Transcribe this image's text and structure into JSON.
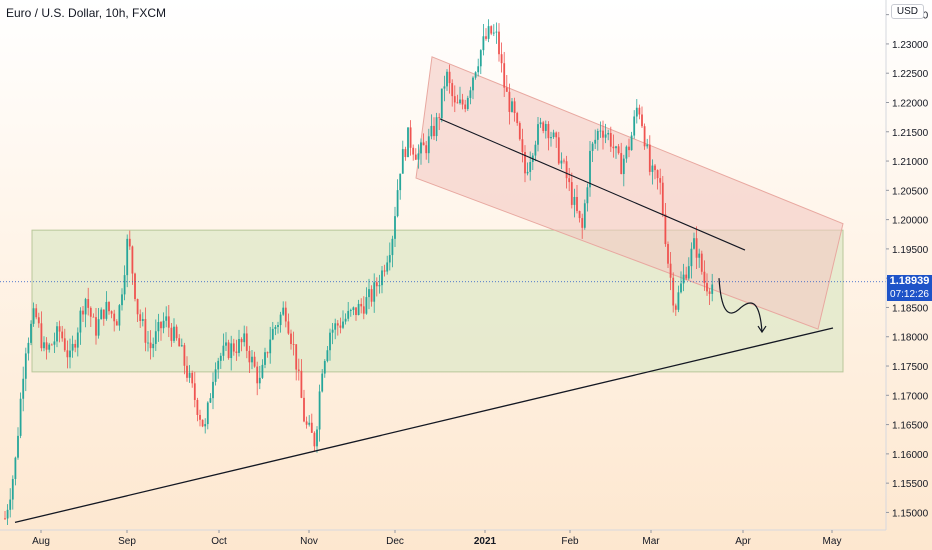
{
  "title": "Euro / U.S. Dollar, 10h, FXCM",
  "currency": "USD",
  "current_price": {
    "value": "1.18939",
    "timer": "07:12:26"
  },
  "colors": {
    "up": "#26a69a",
    "down": "#ef5350",
    "badge": "#1e53c8",
    "rect_fill": "#dfe8c8",
    "channel_fill": "#f3c9c3"
  },
  "chart_data": {
    "type": "candlestick",
    "y_axis": {
      "min": 1.147,
      "max": 1.2375,
      "ticks": [
        "1.15000",
        "1.15500",
        "1.16000",
        "1.16500",
        "1.17000",
        "1.17500",
        "1.18000",
        "1.18500",
        "1.19000",
        "1.19500",
        "1.20000",
        "1.20500",
        "1.21000",
        "1.21500",
        "1.22000",
        "1.22500",
        "1.23000",
        "1.23500"
      ]
    },
    "x_axis": {
      "labels": [
        "Aug",
        "Sep",
        "Oct",
        "Nov",
        "Dec",
        "2021",
        "Feb",
        "Mar",
        "Apr",
        "May"
      ],
      "positions": [
        41,
        127,
        219,
        309,
        395,
        485,
        570,
        651,
        743,
        832
      ]
    },
    "price_path": [
      [
        5,
        1.149
      ],
      [
        15,
        1.158
      ],
      [
        25,
        1.178
      ],
      [
        35,
        1.184
      ],
      [
        45,
        1.177
      ],
      [
        60,
        1.181
      ],
      [
        70,
        1.176
      ],
      [
        85,
        1.187
      ],
      [
        95,
        1.181
      ],
      [
        105,
        1.185
      ],
      [
        118,
        1.183
      ],
      [
        128,
        1.197
      ],
      [
        138,
        1.184
      ],
      [
        150,
        1.178
      ],
      [
        165,
        1.183
      ],
      [
        180,
        1.178
      ],
      [
        192,
        1.171
      ],
      [
        205,
        1.164
      ],
      [
        215,
        1.176
      ],
      [
        230,
        1.178
      ],
      [
        245,
        1.179
      ],
      [
        260,
        1.172
      ],
      [
        270,
        1.18
      ],
      [
        285,
        1.185
      ],
      [
        295,
        1.177
      ],
      [
        305,
        1.165
      ],
      [
        315,
        1.162
      ],
      [
        322,
        1.175
      ],
      [
        330,
        1.181
      ],
      [
        345,
        1.183
      ],
      [
        360,
        1.185
      ],
      [
        372,
        1.187
      ],
      [
        382,
        1.191
      ],
      [
        392,
        1.197
      ],
      [
        400,
        1.209
      ],
      [
        408,
        1.214
      ],
      [
        418,
        1.211
      ],
      [
        428,
        1.213
      ],
      [
        438,
        1.217
      ],
      [
        446,
        1.225
      ],
      [
        455,
        1.219
      ],
      [
        465,
        1.22
      ],
      [
        475,
        1.226
      ],
      [
        483,
        1.23
      ],
      [
        490,
        1.232
      ],
      [
        497,
        1.231
      ],
      [
        505,
        1.222
      ],
      [
        515,
        1.217
      ],
      [
        525,
        1.208
      ],
      [
        535,
        1.214
      ],
      [
        545,
        1.217
      ],
      [
        555,
        1.213
      ],
      [
        565,
        1.208
      ],
      [
        575,
        1.202
      ],
      [
        582,
        1.198
      ],
      [
        590,
        1.211
      ],
      [
        600,
        1.216
      ],
      [
        610,
        1.214
      ],
      [
        620,
        1.209
      ],
      [
        630,
        1.213
      ],
      [
        638,
        1.22
      ],
      [
        643,
        1.216
      ],
      [
        650,
        1.208
      ],
      [
        660,
        1.206
      ],
      [
        668,
        1.193
      ],
      [
        675,
        1.185
      ],
      [
        685,
        1.191
      ],
      [
        695,
        1.196
      ],
      [
        705,
        1.189
      ],
      [
        713,
        1.189
      ]
    ],
    "annotations": {
      "support_zone": {
        "x_start": "Jul 24",
        "x_end": "May 1",
        "y_low": 1.174,
        "y_high": 1.1982
      },
      "descending_channel_upper": {
        "from": [
          432,
          1.2278
        ],
        "to": [
          843,
          1.1993
        ]
      },
      "descending_channel_lower": {
        "from": [
          416,
          1.2071
        ],
        "to": [
          818,
          1.1813
        ]
      },
      "channel_midline": {
        "from": [
          440,
          1.2172
        ],
        "to": [
          745,
          1.1948
        ]
      },
      "rising_trendline": {
        "from": [
          15,
          1.1483
        ],
        "to": [
          833,
          1.1815
        ]
      },
      "projection_arrow": {
        "from": [
          719,
          1.19
        ],
        "via": [
          735,
          1.185
        ],
        "to": [
          762,
          1.1808
        ]
      }
    }
  }
}
